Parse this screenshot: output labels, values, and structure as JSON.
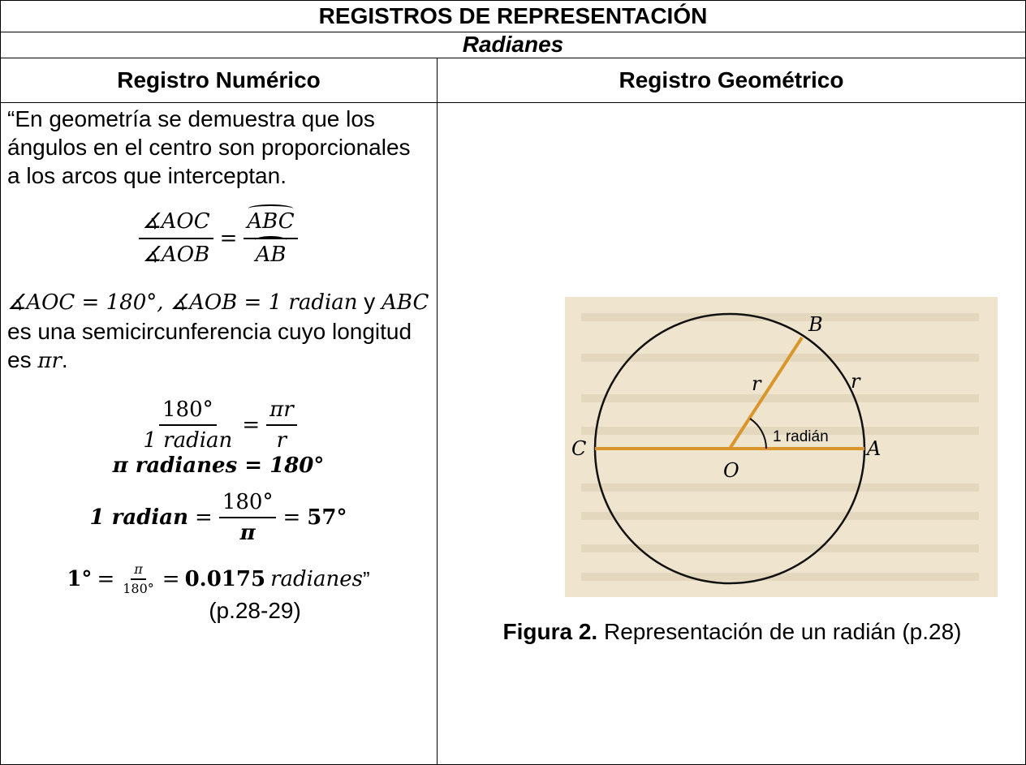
{
  "table": {
    "title": "REGISTROS DE REPRESENTACIÓN",
    "subtitle": "Radianes",
    "headers": [
      "Registro Numérico",
      "Registro Geométrico"
    ],
    "numeric": {
      "intro": "“En geometría se demuestra que los ángulos en el centro son proporcionales a los arcos que interceptan.",
      "eq1": {
        "num": "∡AOC",
        "den": "∡AOB",
        "op": "=",
        "num2": "ABC",
        "den2": "AB"
      },
      "para": [
        "∡AOC = 180°, ∡AOB = 1 radian",
        " y ",
        "ABC",
        " es una semicircunferencia cuyo longitud es ",
        "πr",
        "."
      ],
      "eq2": {
        "num": "180°",
        "den": "1 radian",
        "op": "=",
        "num2": "πr",
        "den2": "r"
      },
      "eq3": "π radianes = 180°",
      "eq4": {
        "lhs": "1 radian",
        "op": "=",
        "num": "180°",
        "den": "π",
        "op2": "=",
        "rhs": "57°"
      },
      "eq5": {
        "lhs": "1°",
        "op": "=",
        "num": "π",
        "den": "180°",
        "op2": "=",
        "rhs": "0.0175",
        "unit": "radianes",
        "quote": "”"
      },
      "citation": "(p.28-29)"
    },
    "geometric": {
      "labels": {
        "B": "B",
        "r1": "r",
        "r2": "r",
        "angle": "1 radián",
        "C": "C",
        "O": "O",
        "A": "A"
      },
      "caption_bold": "Figura 2.",
      "caption": " Representación de un radián (p.28)"
    }
  }
}
